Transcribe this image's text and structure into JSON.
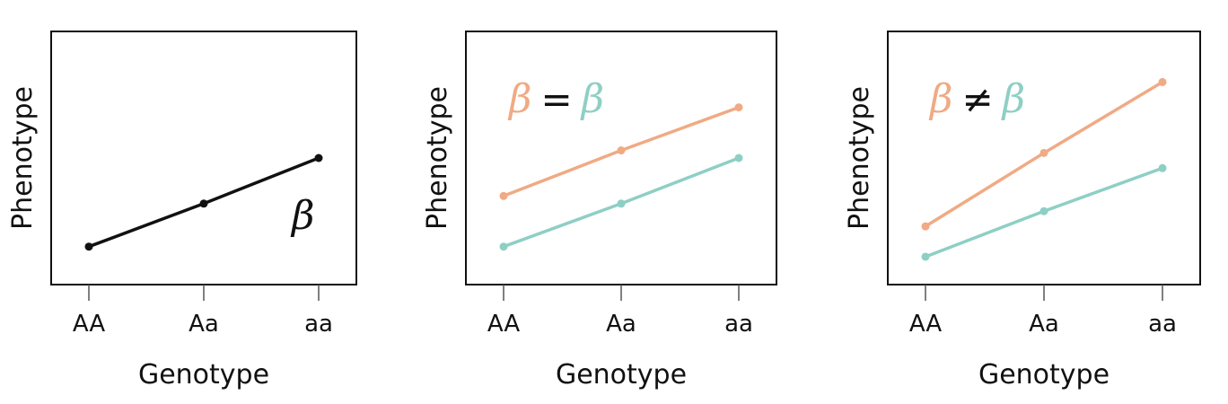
{
  "colors": {
    "black": "#111111",
    "orange": "#F0AA84",
    "teal": "#8ECFC5"
  },
  "chart_data": [
    {
      "type": "line",
      "xlabel": "Genotype",
      "ylabel": "Phenotype",
      "categories": [
        "AA",
        "Aa",
        "aa"
      ],
      "ylim": [
        0,
        10
      ],
      "series": [
        {
          "color_key": "black",
          "values": [
            1.5,
            3.2,
            5.0
          ]
        }
      ],
      "annotation": {
        "parts": [
          {
            "text": "β",
            "color_key": "black"
          }
        ]
      }
    },
    {
      "type": "line",
      "xlabel": "Genotype",
      "ylabel": "Phenotype",
      "categories": [
        "AA",
        "Aa",
        "aa"
      ],
      "ylim": [
        0,
        10
      ],
      "series": [
        {
          "color_key": "orange",
          "values": [
            3.5,
            5.3,
            7.0
          ]
        },
        {
          "color_key": "teal",
          "values": [
            1.5,
            3.2,
            5.0
          ]
        }
      ],
      "annotation": {
        "parts": [
          {
            "text": "β",
            "color_key": "orange"
          },
          {
            "text": "=",
            "color_key": "black"
          },
          {
            "text": "β",
            "color_key": "teal"
          }
        ]
      }
    },
    {
      "type": "line",
      "xlabel": "Genotype",
      "ylabel": "Phenotype",
      "categories": [
        "AA",
        "Aa",
        "aa"
      ],
      "ylim": [
        0,
        10
      ],
      "series": [
        {
          "color_key": "orange",
          "values": [
            2.3,
            5.2,
            8.0
          ]
        },
        {
          "color_key": "teal",
          "values": [
            1.1,
            2.9,
            4.6
          ]
        }
      ],
      "annotation": {
        "parts": [
          {
            "text": "β",
            "color_key": "orange"
          },
          {
            "text": "≠",
            "color_key": "black"
          },
          {
            "text": "β",
            "color_key": "teal"
          }
        ]
      }
    }
  ]
}
